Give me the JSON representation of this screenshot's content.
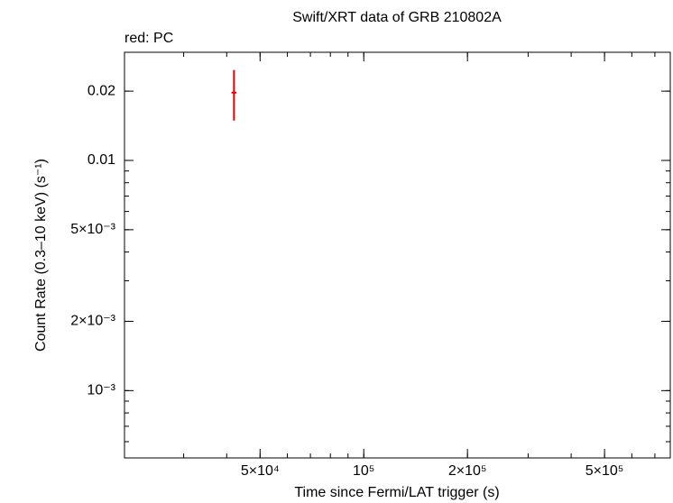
{
  "chart_data": {
    "type": "errorbar",
    "title": "Swift/XRT data of GRB 210802A",
    "annotation": "red: PC",
    "xlabel": "Time since Fermi/LAT trigger (s)",
    "ylabel": "Count Rate (0.3–10 keV) (s⁻¹)",
    "xscale": "log",
    "yscale": "log",
    "xlim": [
      20200,
      776000
    ],
    "ylim": [
      0.00051,
      0.0295
    ],
    "xticks": [
      {
        "value": 50000,
        "label": "5×10⁴"
      },
      {
        "value": 100000,
        "label": "10⁵"
      },
      {
        "value": 200000,
        "label": "2×10⁵"
      },
      {
        "value": 500000,
        "label": "5×10⁵"
      }
    ],
    "yticks": [
      {
        "value": 0.001,
        "label": "10⁻³"
      },
      {
        "value": 0.002,
        "label": "2×10⁻³"
      },
      {
        "value": 0.005,
        "label": "5×10⁻³"
      },
      0.01,
      0.02
    ],
    "series": [
      {
        "color": "#e00000",
        "x": [
          42000
        ],
        "xerr": [
          700
        ],
        "values": [
          0.0197
        ],
        "yerr_plus": [
          0.005
        ],
        "yerr_minus": [
          0.0048
        ]
      }
    ]
  }
}
